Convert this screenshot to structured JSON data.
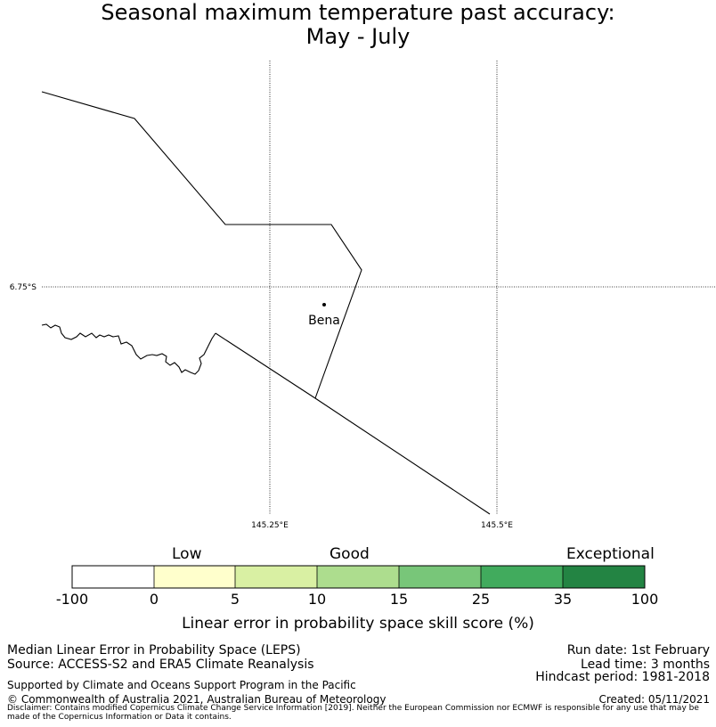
{
  "title": {
    "line1": "Seasonal maximum temperature past accuracy:",
    "line2": "May - July"
  },
  "map": {
    "lat_label": "6.75°S",
    "lon_labels": [
      "145.25°E",
      "145.5°E"
    ],
    "place": "Bena",
    "line_color": "#000000"
  },
  "colorbar": {
    "categories": [
      "Low",
      "Good",
      "Exceptional"
    ],
    "ticks": [
      "-100",
      "0",
      "5",
      "10",
      "15",
      "25",
      "35",
      "100"
    ],
    "colors": [
      "#ffffff",
      "#ffffcc",
      "#d9f0a3",
      "#addd8e",
      "#78c679",
      "#41ab5d",
      "#238443"
    ],
    "label": "Linear error in probability space skill score (%)"
  },
  "info": {
    "method": "Median Linear Error in Probability Space (LEPS)",
    "source": "Source: ACCESS-S2 and ERA5 Climate Reanalysis",
    "support": "Supported by Climate and Oceans Support Program in the Pacific",
    "copyright": "© Commonwealth of Australia 2021, Australian Bureau of Meteorology",
    "run_date": "Run date: 1st February",
    "lead_time": "Lead time: 3 months",
    "hindcast": "Hindcast period: 1981-2018",
    "created": "Created: 05/11/2021",
    "disclaimer": "Disclaimer: Contains modified Copernicus Climate Change Service Information [2019]. Neither the European Commission nor ECMWF is responsible for any use that may be made of the Copernicus Information or Data it contains."
  }
}
